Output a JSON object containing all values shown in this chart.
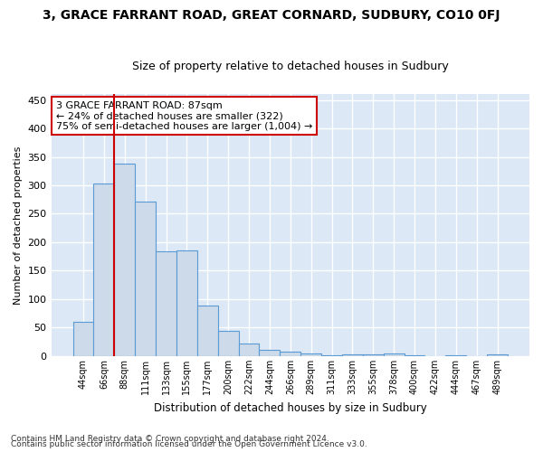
{
  "title": "3, GRACE FARRANT ROAD, GREAT CORNARD, SUDBURY, CO10 0FJ",
  "subtitle": "Size of property relative to detached houses in Sudbury",
  "xlabel": "Distribution of detached houses by size in Sudbury",
  "ylabel": "Number of detached properties",
  "footnote1": "Contains HM Land Registry data © Crown copyright and database right 2024.",
  "footnote2": "Contains public sector information licensed under the Open Government Licence v3.0.",
  "bar_labels": [
    "44sqm",
    "66sqm",
    "88sqm",
    "111sqm",
    "133sqm",
    "155sqm",
    "177sqm",
    "200sqm",
    "222sqm",
    "244sqm",
    "266sqm",
    "289sqm",
    "311sqm",
    "333sqm",
    "355sqm",
    "378sqm",
    "400sqm",
    "422sqm",
    "444sqm",
    "467sqm",
    "489sqm"
  ],
  "bar_values": [
    60,
    303,
    338,
    272,
    184,
    185,
    88,
    45,
    22,
    11,
    7,
    4,
    2,
    3,
    3,
    4,
    1,
    0,
    1,
    0,
    3
  ],
  "bar_color": "#ccdaea",
  "bar_edge_color": "#5b9bd5",
  "vline_x": 1.5,
  "vline_color": "#cc0000",
  "annotation_title": "3 GRACE FARRANT ROAD: 87sqm",
  "annotation_line2": "← 24% of detached houses are smaller (322)",
  "annotation_line3": "75% of semi-detached houses are larger (1,004) →",
  "annotation_box_color": "#cc0000",
  "ylim": [
    0,
    460
  ],
  "yticks": [
    0,
    50,
    100,
    150,
    200,
    250,
    300,
    350,
    400,
    450
  ],
  "fig_bg_color": "#ffffff",
  "plot_bg_color": "#dce8f5",
  "grid_color": "#ffffff",
  "title_fontsize": 10,
  "subtitle_fontsize": 9
}
